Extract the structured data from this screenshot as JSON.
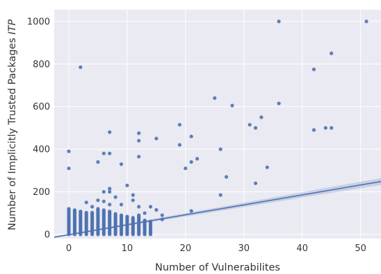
{
  "chart_data": {
    "type": "scatter",
    "title": "",
    "xlabel": "Number of Vulnerabilites",
    "ylabel_main": "Number of Implicitly Trusted Packages ",
    "ylabel_italic": "ITP",
    "xlim": [
      -2.5,
      53.5
    ],
    "ylim": [
      -20,
      1055
    ],
    "xticks": [
      0,
      10,
      20,
      30,
      40,
      50
    ],
    "yticks": [
      0,
      200,
      400,
      600,
      800,
      1000
    ],
    "xtick_labels": [
      "0",
      "10",
      "20",
      "30",
      "40",
      "50"
    ],
    "ytick_labels": [
      "0",
      "200",
      "400",
      "600",
      "800",
      "1000"
    ],
    "grid": true,
    "colors": {
      "background": "#eaeaf2",
      "grid": "#ffffff",
      "points": "#4c72b0",
      "regression": "#4c72b0",
      "confidence_band": "#a9b8d8"
    },
    "regression": {
      "x_start": -2.5,
      "x_end": 53.5,
      "slope": 4.67,
      "intercept": -1.6,
      "ci_halfwidth_at_x0": 3,
      "ci_halfwidth_at_xmax": 16
    },
    "series": [
      {
        "points": [
          [
            0,
            390
          ],
          [
            0,
            310
          ],
          [
            2,
            785
          ],
          [
            5,
            340
          ],
          [
            6,
            380
          ],
          [
            7,
            380
          ],
          [
            7,
            480
          ],
          [
            7,
            215
          ],
          [
            7,
            200
          ],
          [
            9,
            330
          ],
          [
            10,
            230
          ],
          [
            11,
            185
          ],
          [
            12,
            475
          ],
          [
            12,
            440
          ],
          [
            12,
            365
          ],
          [
            15,
            450
          ],
          [
            19,
            515
          ],
          [
            19,
            420
          ],
          [
            20,
            310
          ],
          [
            21,
            460
          ],
          [
            21,
            340
          ],
          [
            22,
            355
          ],
          [
            25,
            640
          ],
          [
            26,
            400
          ],
          [
            26,
            185
          ],
          [
            27,
            270
          ],
          [
            28,
            605
          ],
          [
            31,
            515
          ],
          [
            32,
            500
          ],
          [
            32,
            240
          ],
          [
            33,
            550
          ],
          [
            34,
            315
          ],
          [
            36,
            1000
          ],
          [
            36,
            615
          ],
          [
            42,
            775
          ],
          [
            42,
            490
          ],
          [
            44,
            500
          ],
          [
            45,
            500
          ],
          [
            45,
            850
          ],
          [
            51,
            1000
          ],
          [
            21,
            110
          ],
          [
            6,
            200
          ],
          [
            8,
            175
          ],
          [
            11,
            160
          ],
          [
            14,
            130
          ],
          [
            15,
            115
          ],
          [
            3,
            150
          ],
          [
            5,
            160
          ],
          [
            4,
            130
          ],
          [
            9,
            140
          ],
          [
            13,
            100
          ],
          [
            14,
            60
          ],
          [
            13,
            40
          ],
          [
            16,
            90
          ],
          [
            16,
            70
          ],
          [
            7,
            140
          ],
          [
            6,
            155
          ],
          [
            12,
            130
          ]
        ],
        "dense_columns": [
          {
            "x": 0,
            "max": 125
          },
          {
            "x": 1,
            "max": 115
          },
          {
            "x": 2,
            "max": 110
          },
          {
            "x": 3,
            "max": 105
          },
          {
            "x": 4,
            "max": 105
          },
          {
            "x": 5,
            "max": 120
          },
          {
            "x": 6,
            "max": 115
          },
          {
            "x": 7,
            "max": 110
          },
          {
            "x": 8,
            "max": 100
          },
          {
            "x": 9,
            "max": 95
          },
          {
            "x": 10,
            "max": 85
          },
          {
            "x": 11,
            "max": 80
          },
          {
            "x": 12,
            "max": 90
          },
          {
            "x": 13,
            "max": 70
          },
          {
            "x": 14,
            "max": 60
          }
        ]
      }
    ]
  }
}
